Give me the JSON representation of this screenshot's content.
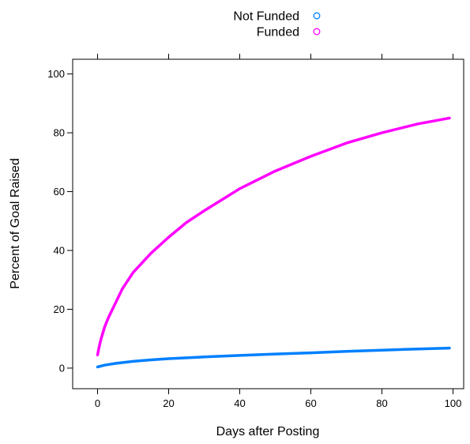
{
  "chart_data": {
    "type": "line",
    "title": "",
    "xlabel": "Days after Posting",
    "ylabel": "Percent of Goal Raised",
    "xlim": [
      -7,
      103
    ],
    "ylim": [
      -7,
      105
    ],
    "x_ticks": [
      0,
      20,
      40,
      60,
      80,
      100
    ],
    "y_ticks": [
      0,
      20,
      40,
      60,
      80,
      100
    ],
    "x_tick_labels": [
      "0",
      "20",
      "40",
      "60",
      "80",
      "100"
    ],
    "y_tick_labels": [
      "0",
      "20",
      "40",
      "60",
      "80",
      "100"
    ],
    "grid": false,
    "legend_position": "top",
    "legend": [
      {
        "name": "Not Funded",
        "color": "#0080ff",
        "marker": "open-circle"
      },
      {
        "name": "Funded",
        "color": "#ff00ff",
        "marker": "open-circle"
      }
    ],
    "series": [
      {
        "name": "Not Funded",
        "color": "#0080ff",
        "x": [
          0,
          2,
          5,
          10,
          15,
          20,
          30,
          40,
          50,
          60,
          70,
          80,
          90,
          99
        ],
        "y": [
          0.4,
          1.0,
          1.6,
          2.3,
          2.8,
          3.2,
          3.8,
          4.3,
          4.8,
          5.2,
          5.7,
          6.1,
          6.5,
          6.8
        ]
      },
      {
        "name": "Funded",
        "color": "#ff00ff",
        "x": [
          0,
          0.5,
          1,
          2,
          3,
          5,
          7,
          10,
          15,
          20,
          25,
          30,
          40,
          50,
          60,
          70,
          80,
          90,
          99
        ],
        "y": [
          4.5,
          7.5,
          10,
          14,
          17,
          22,
          27,
          32.5,
          39,
          44.5,
          49.5,
          53.5,
          61,
          67,
          72,
          76.5,
          80,
          83,
          85
        ]
      }
    ]
  }
}
